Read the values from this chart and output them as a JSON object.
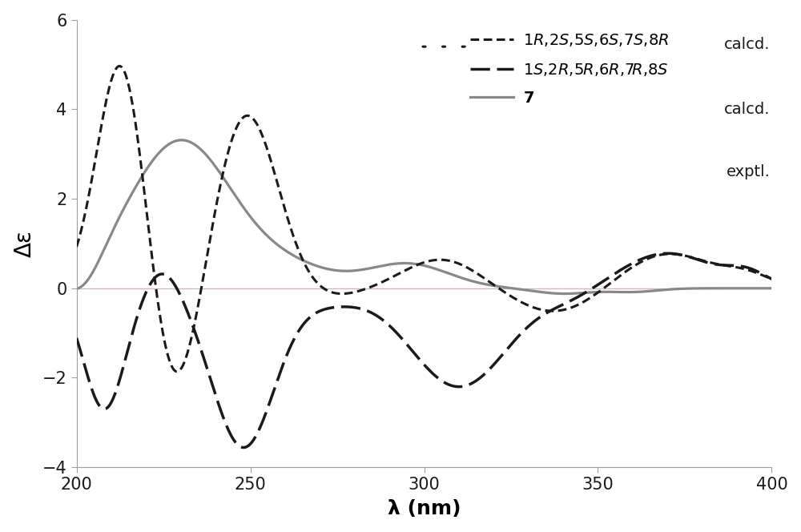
{
  "xlim": [
    200,
    400
  ],
  "ylim": [
    -4,
    6
  ],
  "xlabel": "λ (nm)",
  "ylabel": "Δε",
  "xticks": [
    200,
    250,
    300,
    350,
    400
  ],
  "yticks": [
    -4,
    -2,
    0,
    2,
    4,
    6
  ],
  "curve1_color": "#1a1a1a",
  "curve2_color": "#1a1a1a",
  "curve3_color": "#888888",
  "zero_line_color": "#c8b8b8",
  "background_color": "#ffffff",
  "spine_color": "#a0a0a0",
  "curve1_label_stereo": "1$R$,2$S$,5$S$,6$S$,7$S$,8$R$",
  "curve2_label_stereo": "1$S$,2$R$,5$R$,6$R$,7$R$,8$S$",
  "curve3_label": "$\\mathbf{7}$",
  "calcd_label": "calcd.",
  "exptl_label": "exptl."
}
